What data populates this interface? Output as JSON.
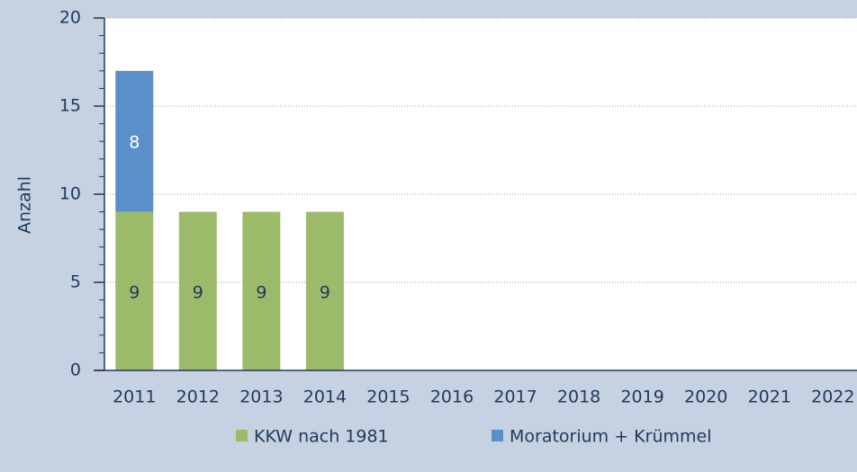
{
  "chart_data": {
    "type": "stacked_bar",
    "y_label": "Anzahl",
    "categories": [
      "2011",
      "2012",
      "2013",
      "2014",
      "2015",
      "2016",
      "2017",
      "2018",
      "2019",
      "2020",
      "2021",
      "2022"
    ],
    "series": [
      {
        "name": "KKW nach 1981",
        "color": "#9bbb6a",
        "label_color": "#1f3a5a",
        "values": [
          9,
          9,
          9,
          9,
          null,
          null,
          null,
          null,
          null,
          null,
          null,
          null
        ]
      },
      {
        "name": "Moratorium + Krümmel",
        "color": "#5b8fc9",
        "label_color": "#ffffff",
        "values": [
          8,
          null,
          null,
          null,
          null,
          null,
          null,
          null,
          null,
          null,
          null,
          null
        ]
      }
    ],
    "ylim": [
      0,
      20
    ],
    "yticks": [
      0,
      5,
      10,
      15,
      20
    ],
    "grid": true
  }
}
